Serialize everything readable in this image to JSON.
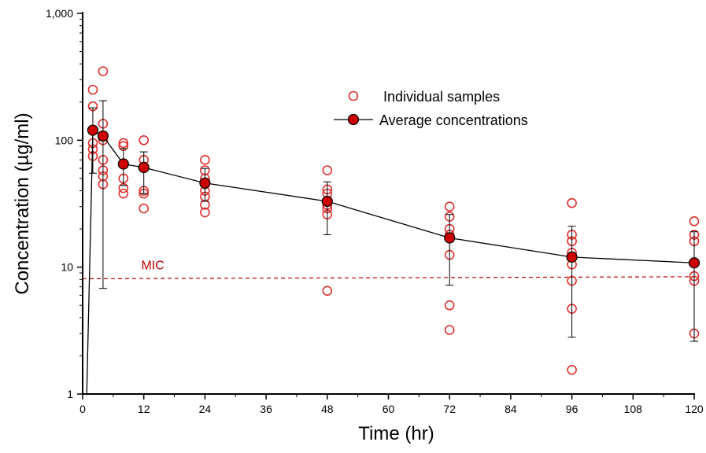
{
  "chart_data": {
    "type": "scatter",
    "xlabel": "Time (hr)",
    "ylabel": "Concentration (µg/ml)",
    "xlim": [
      0,
      120
    ],
    "ylim": [
      1,
      1000
    ],
    "y_scale": "log",
    "x_ticks": [
      0,
      12,
      24,
      36,
      48,
      60,
      72,
      84,
      96,
      108,
      120
    ],
    "y_ticks": [
      1,
      10,
      100,
      1000
    ],
    "y_tick_labels": [
      "1",
      "10",
      "100",
      "1,000"
    ],
    "grid": false,
    "legend_position": "top-right",
    "colors": {
      "individual": "#e03030",
      "average_fill": "#cc0000",
      "average_line": "#000000",
      "mic": "#c00000"
    },
    "series": [
      {
        "name": "Individual samples",
        "marker": "open-circle",
        "points": [
          [
            2,
            250
          ],
          [
            2,
            185
          ],
          [
            2,
            85
          ],
          [
            2,
            75
          ],
          [
            2,
            95
          ],
          [
            4,
            350
          ],
          [
            4,
            135
          ],
          [
            4,
            100
          ],
          [
            4,
            70
          ],
          [
            4,
            58
          ],
          [
            4,
            52
          ],
          [
            4,
            45
          ],
          [
            8,
            95
          ],
          [
            8,
            90
          ],
          [
            8,
            65
          ],
          [
            8,
            50
          ],
          [
            8,
            42
          ],
          [
            8,
            38
          ],
          [
            12,
            100
          ],
          [
            12,
            70
          ],
          [
            12,
            62
          ],
          [
            12,
            40
          ],
          [
            12,
            38
          ],
          [
            12,
            29
          ],
          [
            24,
            70
          ],
          [
            24,
            58
          ],
          [
            24,
            50
          ],
          [
            24,
            45
          ],
          [
            24,
            40
          ],
          [
            24,
            36
          ],
          [
            24,
            31
          ],
          [
            24,
            27
          ],
          [
            48,
            58
          ],
          [
            48,
            41
          ],
          [
            48,
            38
          ],
          [
            48,
            31
          ],
          [
            48,
            29
          ],
          [
            48,
            26
          ],
          [
            48,
            6.5
          ],
          [
            72,
            30
          ],
          [
            72,
            25
          ],
          [
            72,
            20
          ],
          [
            72,
            18
          ],
          [
            72,
            12.5
          ],
          [
            72,
            5
          ],
          [
            72,
            3.2
          ],
          [
            96,
            32
          ],
          [
            96,
            18
          ],
          [
            96,
            16
          ],
          [
            96,
            13
          ],
          [
            96,
            10.5
          ],
          [
            96,
            7.8
          ],
          [
            96,
            4.7
          ],
          [
            96,
            1.55
          ],
          [
            120,
            23
          ],
          [
            120,
            18
          ],
          [
            120,
            16
          ],
          [
            120,
            8.5
          ],
          [
            120,
            7.8
          ],
          [
            120,
            3.0
          ]
        ]
      },
      {
        "name": "Average concentrations",
        "marker": "filled-circle-line",
        "points": [
          {
            "x": 2,
            "y": 120,
            "err_low": 55,
            "err_high": 180
          },
          {
            "x": 4,
            "y": 108,
            "err_low": 6.8,
            "err_high": 205
          },
          {
            "x": 8,
            "y": 65,
            "err_low": 44,
            "err_high": 86
          },
          {
            "x": 12,
            "y": 61,
            "err_low": 38,
            "err_high": 81
          },
          {
            "x": 24,
            "y": 46,
            "err_low": 33,
            "err_high": 60
          },
          {
            "x": 48,
            "y": 33,
            "err_low": 18,
            "err_high": 47
          },
          {
            "x": 72,
            "y": 17,
            "err_low": 7.2,
            "err_high": 26
          },
          {
            "x": 96,
            "y": 12,
            "err_low": 2.8,
            "err_high": 21
          },
          {
            "x": 120,
            "y": 10.8,
            "err_low": 2.6,
            "err_high": 19
          }
        ],
        "leading_line": [
          [
            0.8,
            1
          ],
          [
            2,
            120
          ]
        ]
      }
    ],
    "reference_line": {
      "label": "MIC",
      "y_start": 8.1,
      "y_end": 8.4,
      "style": "dashed"
    }
  }
}
